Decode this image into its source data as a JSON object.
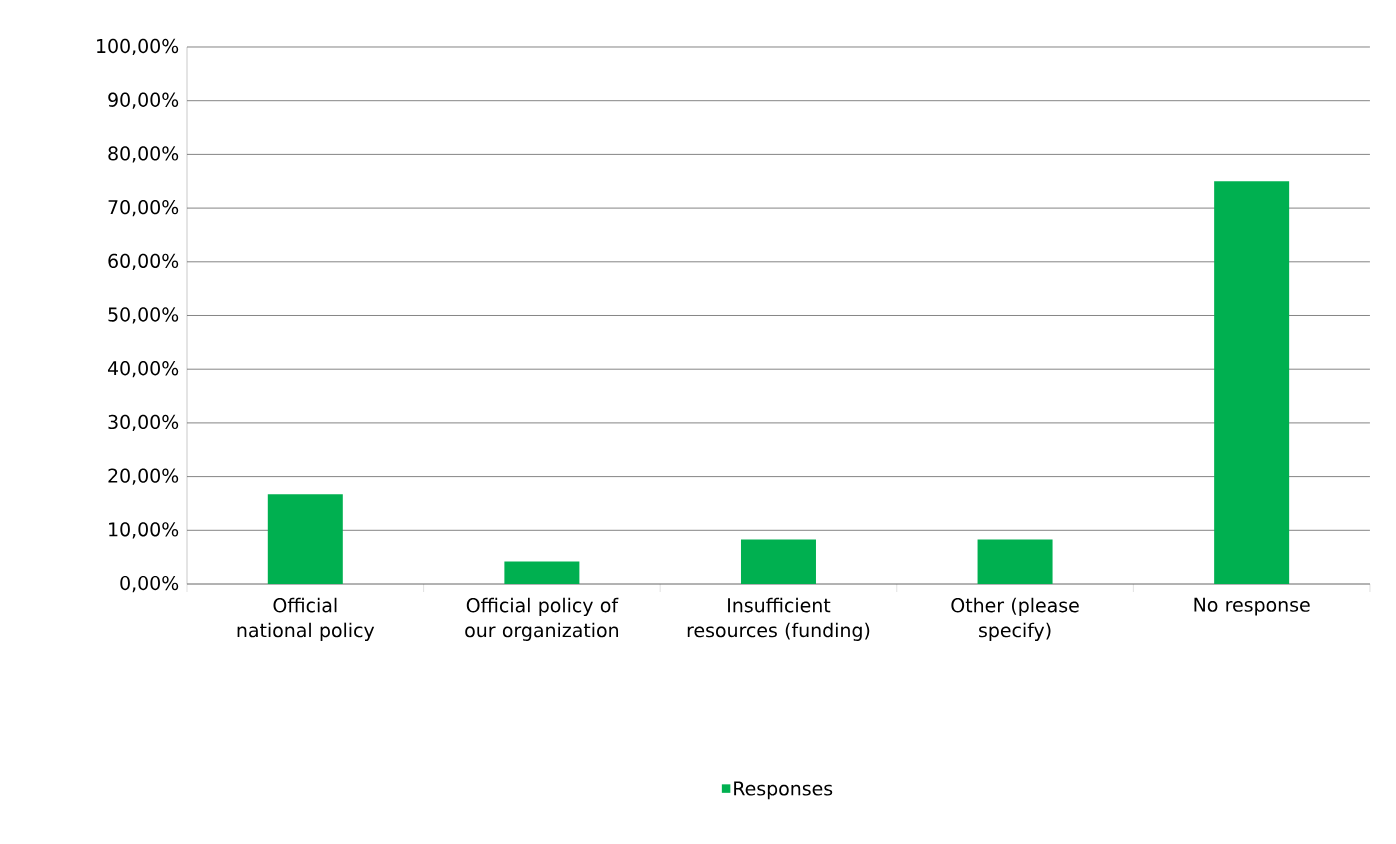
{
  "chart_data": {
    "type": "bar",
    "categories": [
      "Official national policy",
      "Official policy of our organization",
      "Insufficient resources (funding)",
      "Other (please specify)",
      "No response"
    ],
    "series": [
      {
        "name": "Responses",
        "color": "#00b050",
        "values": [
          16.7,
          4.2,
          8.3,
          8.3,
          75.0
        ]
      }
    ],
    "ylim": [
      0,
      100
    ],
    "yticks": [
      {
        "value": 0,
        "label": "0,00%"
      },
      {
        "value": 10,
        "label": "10,00%"
      },
      {
        "value": 20,
        "label": "20,00%"
      },
      {
        "value": 30,
        "label": "30,00%"
      },
      {
        "value": 40,
        "label": "40,00%"
      },
      {
        "value": 50,
        "label": "50,00%"
      },
      {
        "value": 60,
        "label": "60,00%"
      },
      {
        "value": 70,
        "label": "70,00%"
      },
      {
        "value": 80,
        "label": "80,00%"
      },
      {
        "value": 90,
        "label": "90,00%"
      },
      {
        "value": 100,
        "label": "100,00%"
      }
    ],
    "grid": "y",
    "legend": "bottom"
  }
}
